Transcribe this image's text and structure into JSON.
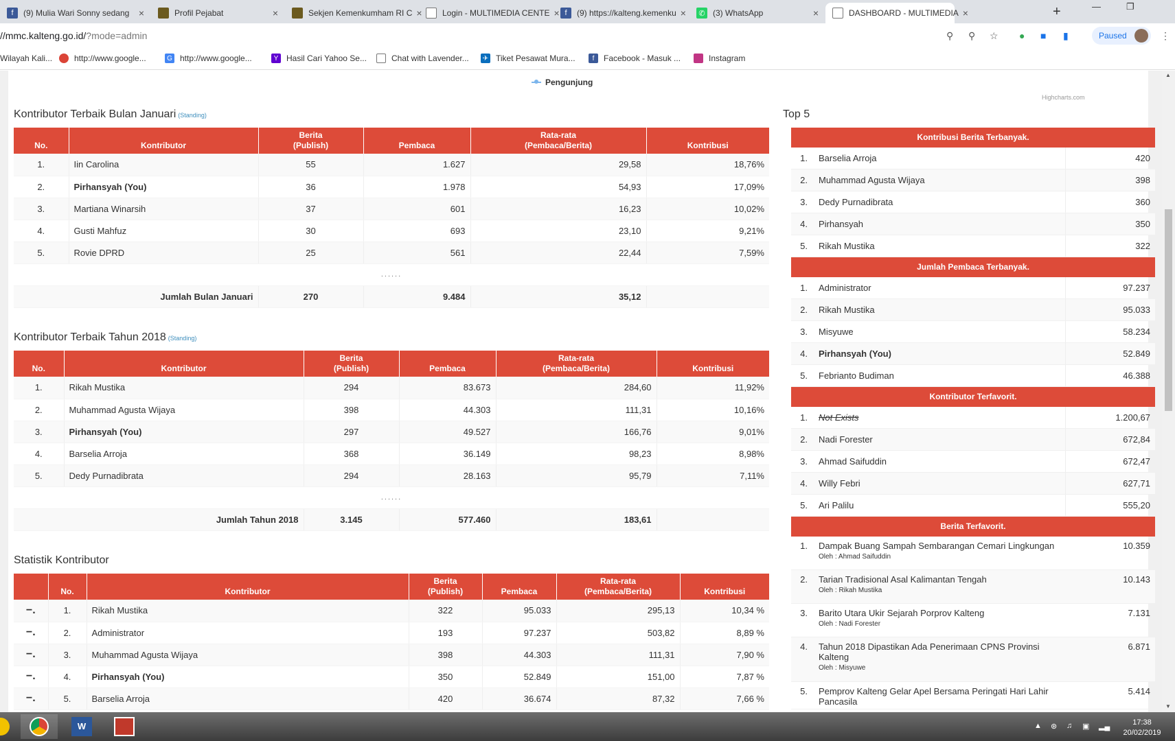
{
  "browser": {
    "tabs": [
      {
        "title": "(9) Mulia Wari Sonny sedang",
        "icon": "facebook-icon",
        "color": "#3b5998"
      },
      {
        "title": "Profil Pejabat",
        "icon": "emblem-icon",
        "color": "#6b5a1e"
      },
      {
        "title": "Sekjen Kemenkumham RI C",
        "icon": "emblem-icon",
        "color": "#6b5a1e"
      },
      {
        "title": "Login - MULTIMEDIA CENTE",
        "icon": "page-icon",
        "color": "#ffffff"
      },
      {
        "title": "(9) https://kalteng.kemenku",
        "icon": "facebook-icon",
        "color": "#3b5998"
      },
      {
        "title": "(3) WhatsApp",
        "icon": "whatsapp-icon",
        "color": "#25d366"
      },
      {
        "title": "DASHBOARD - MULTIMEDIA",
        "icon": "page-icon",
        "color": "#ffffff"
      }
    ],
    "url_host": "//mmc.kalteng.go.id/",
    "url_path": "?mode=admin",
    "paused_label": "Paused",
    "bookmarks": [
      {
        "label": "Wilayah Kali...",
        "icon": "page-icon"
      },
      {
        "label": "http://www.google...",
        "icon": "chrome-icon"
      },
      {
        "label": "http://www.google...",
        "icon": "google-icon"
      },
      {
        "label": "Hasil Cari Yahoo Se...",
        "icon": "yahoo-icon"
      },
      {
        "label": "Chat with Lavender...",
        "icon": "page-icon"
      },
      {
        "label": "Tiket Pesawat Mura...",
        "icon": "plane-icon"
      },
      {
        "label": "Facebook - Masuk ...",
        "icon": "facebook-icon"
      },
      {
        "label": "Instagram",
        "icon": "instagram-icon"
      }
    ]
  },
  "chart_legend": "Pengunjung",
  "chart_credits": "Highcharts.com",
  "monthly": {
    "title": "Kontributor Terbaik Bulan Januari",
    "standing": "(Standing)",
    "headers": {
      "no": "No.",
      "kontributor": "Kontributor",
      "berita": "Berita",
      "berita_sub": "(Publish)",
      "pembaca": "Pembaca",
      "rata": "Rata-rata",
      "rata_sub": "(Pembaca/Berita)",
      "kontribusi": "Kontribusi"
    },
    "rows": [
      {
        "no": "1.",
        "name": "Iin Carolina",
        "berita": "55",
        "pembaca": "1.627",
        "rata": "29,58",
        "kontribusi": "18,76%"
      },
      {
        "no": "2.",
        "name": "Pirhansyah (You)",
        "berita": "36",
        "pembaca": "1.978",
        "rata": "54,93",
        "kontribusi": "17,09%"
      },
      {
        "no": "3.",
        "name": "Martiana Winarsih",
        "berita": "37",
        "pembaca": "601",
        "rata": "16,23",
        "kontribusi": "10,02%"
      },
      {
        "no": "4.",
        "name": "Gusti Mahfuz",
        "berita": "30",
        "pembaca": "693",
        "rata": "23,10",
        "kontribusi": "9,21%"
      },
      {
        "no": "5.",
        "name": "Rovie DPRD",
        "berita": "25",
        "pembaca": "561",
        "rata": "22,44",
        "kontribusi": "7,59%"
      }
    ],
    "dots": "......",
    "total": {
      "label": "Jumlah Bulan Januari",
      "berita": "270",
      "pembaca": "9.484",
      "rata": "35,12"
    }
  },
  "yearly": {
    "title": "Kontributor Terbaik Tahun 2018",
    "standing": "(Standing)",
    "rows": [
      {
        "no": "1.",
        "name": "Rikah Mustika",
        "berita": "294",
        "pembaca": "83.673",
        "rata": "284,60",
        "kontribusi": "11,92%"
      },
      {
        "no": "2.",
        "name": "Muhammad Agusta Wijaya",
        "berita": "398",
        "pembaca": "44.303",
        "rata": "111,31",
        "kontribusi": "10,16%"
      },
      {
        "no": "3.",
        "name": "Pirhansyah (You)",
        "berita": "297",
        "pembaca": "49.527",
        "rata": "166,76",
        "kontribusi": "9,01%"
      },
      {
        "no": "4.",
        "name": "Barselia Arroja",
        "berita": "368",
        "pembaca": "36.149",
        "rata": "98,23",
        "kontribusi": "8,98%"
      },
      {
        "no": "5.",
        "name": "Dedy Purnadibrata",
        "berita": "294",
        "pembaca": "28.163",
        "rata": "95,79",
        "kontribusi": "7,11%"
      }
    ],
    "dots": "......",
    "total": {
      "label": "Jumlah Tahun 2018",
      "berita": "3.145",
      "pembaca": "577.460",
      "rata": "183,61"
    }
  },
  "statistik": {
    "title": "Statistik Kontributor",
    "minus": "−.",
    "rows": [
      {
        "no": "1.",
        "name": "Rikah Mustika",
        "berita": "322",
        "pembaca": "95.033",
        "rata": "295,13",
        "kontribusi": "10,34 %"
      },
      {
        "no": "2.",
        "name": "Administrator",
        "berita": "193",
        "pembaca": "97.237",
        "rata": "503,82",
        "kontribusi": "8,89 %"
      },
      {
        "no": "3.",
        "name": "Muhammad Agusta Wijaya",
        "berita": "398",
        "pembaca": "44.303",
        "rata": "111,31",
        "kontribusi": "7,90 %"
      },
      {
        "no": "4.",
        "name": "Pirhansyah (You)",
        "berita": "350",
        "pembaca": "52.849",
        "rata": "151,00",
        "kontribusi": "7,87 %"
      },
      {
        "no": "5.",
        "name": "Barselia Arroja",
        "berita": "420",
        "pembaca": "36.674",
        "rata": "87,32",
        "kontribusi": "7,66 %"
      }
    ]
  },
  "top5": {
    "title": "Top 5",
    "kontribusi": {
      "header": "Kontribusi Berita Terbanyak.",
      "items": [
        {
          "no": "1.",
          "name": "Barselia Arroja",
          "value": "420"
        },
        {
          "no": "2.",
          "name": "Muhammad Agusta Wijaya",
          "value": "398"
        },
        {
          "no": "3.",
          "name": "Dedy Purnadibrata",
          "value": "360"
        },
        {
          "no": "4.",
          "name": "Pirhansyah",
          "value": "350"
        },
        {
          "no": "5.",
          "name": "Rikah Mustika",
          "value": "322"
        }
      ]
    },
    "pembaca": {
      "header": "Jumlah Pembaca Terbanyak.",
      "items": [
        {
          "no": "1.",
          "name": "Administrator",
          "value": "97.237"
        },
        {
          "no": "2.",
          "name": "Rikah Mustika",
          "value": "95.033"
        },
        {
          "no": "3.",
          "name": "Misyuwe",
          "value": "58.234"
        },
        {
          "no": "4.",
          "name": "Pirhansyah (You)",
          "value": "52.849"
        },
        {
          "no": "5.",
          "name": "Febrianto Budiman",
          "value": "46.388"
        }
      ]
    },
    "favorit": {
      "header": "Kontributor Terfavorit.",
      "items": [
        {
          "no": "1.",
          "name": "Not Exists",
          "value": "1.200,67"
        },
        {
          "no": "2.",
          "name": "Nadi Forester",
          "value": "672,84"
        },
        {
          "no": "3.",
          "name": "Ahmad Saifuddin",
          "value": "672,47"
        },
        {
          "no": "4.",
          "name": "Willy Febri",
          "value": "627,71"
        },
        {
          "no": "5.",
          "name": "Ari Palilu",
          "value": "555,20"
        }
      ]
    },
    "berita": {
      "header": "Berita Terfavorit.",
      "items": [
        {
          "no": "1.",
          "title": "Dampak Buang Sampah Sembarangan Cemari Lingkungan",
          "by": "Oleh : Ahmad Saifuddin",
          "value": "10.359"
        },
        {
          "no": "2.",
          "title": "Tarian Tradisional Asal Kalimantan Tengah",
          "by": "Oleh : Rikah Mustika",
          "value": "10.143"
        },
        {
          "no": "3.",
          "title": "Barito Utara Ukir Sejarah Porprov Kalteng",
          "by": "Oleh : Nadi Forester",
          "value": "7.131"
        },
        {
          "no": "4.",
          "title": "Tahun 2018 Dipastikan Ada Penerimaan CPNS Provinsi Kalteng",
          "by": "Oleh : Misyuwe",
          "value": "6.871"
        },
        {
          "no": "5.",
          "title": "Pemprov Kalteng Gelar Apel Bersama Peringati Hari Lahir Pancasila",
          "by": "",
          "value": "5.414"
        }
      ]
    }
  },
  "taskbar": {
    "time": "17:38",
    "date": "20/02/2019"
  }
}
